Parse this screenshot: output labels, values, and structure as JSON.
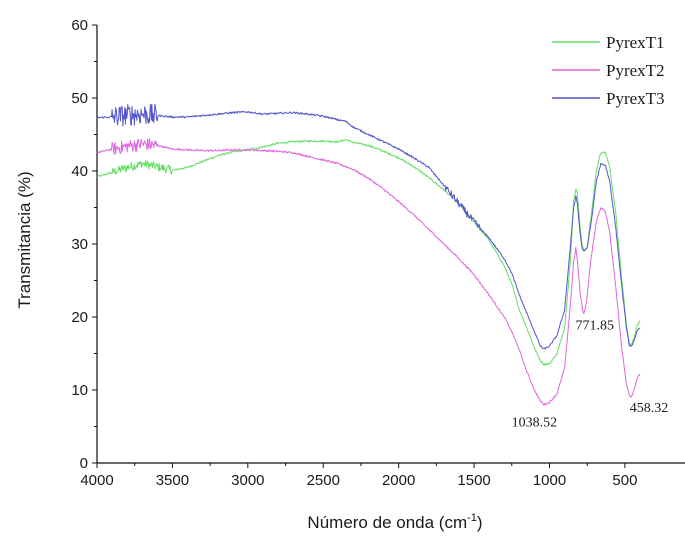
{
  "chart_data": {
    "type": "line",
    "title": "",
    "xlabel": "Número de onda (cm",
    "xlabel_sup": "-1",
    "xlabel_end": ")",
    "ylabel": "Transmitancia (%)",
    "xlim": [
      4000,
      400
    ],
    "ylim": [
      0,
      60
    ],
    "x_ticks": [
      4000,
      3500,
      3000,
      2500,
      2000,
      1500,
      1000,
      500
    ],
    "y_ticks": [
      0,
      10,
      20,
      30,
      40,
      50,
      60
    ],
    "legend_position": "top-right",
    "series": [
      {
        "name": "PyrexT1",
        "color": "#66dd66",
        "noise": [
          [
            3900,
            3500,
            0.6
          ]
        ],
        "points": [
          [
            4000,
            39.2
          ],
          [
            3900,
            39.8
          ],
          [
            3800,
            40.5
          ],
          [
            3700,
            41.0
          ],
          [
            3600,
            40.6
          ],
          [
            3500,
            40.1
          ],
          [
            3400,
            40.5
          ],
          [
            3300,
            41.3
          ],
          [
            3200,
            42.1
          ],
          [
            3100,
            42.6
          ],
          [
            3000,
            42.9
          ],
          [
            2900,
            43.3
          ],
          [
            2800,
            43.8
          ],
          [
            2700,
            44.0
          ],
          [
            2600,
            44.1
          ],
          [
            2500,
            44.1
          ],
          [
            2400,
            44.0
          ],
          [
            2350,
            44.3
          ],
          [
            2300,
            43.9
          ],
          [
            2200,
            43.5
          ],
          [
            2100,
            42.7
          ],
          [
            2000,
            41.8
          ],
          [
            1900,
            40.6
          ],
          [
            1800,
            39.1
          ],
          [
            1700,
            37.4
          ],
          [
            1600,
            35.5
          ],
          [
            1500,
            33.0
          ],
          [
            1400,
            30.5
          ],
          [
            1300,
            27.0
          ],
          [
            1250,
            24.5
          ],
          [
            1200,
            21.0
          ],
          [
            1150,
            18.5
          ],
          [
            1100,
            15.8
          ],
          [
            1060,
            14.0
          ],
          [
            1038,
            13.5
          ],
          [
            1000,
            13.6
          ],
          [
            950,
            15.0
          ],
          [
            900,
            18.5
          ],
          [
            860,
            28.0
          ],
          [
            840,
            36.0
          ],
          [
            825,
            37.5
          ],
          [
            815,
            37.0
          ],
          [
            800,
            33.0
          ],
          [
            785,
            30.0
          ],
          [
            772,
            29.0
          ],
          [
            750,
            29.5
          ],
          [
            720,
            34.5
          ],
          [
            690,
            40.0
          ],
          [
            660,
            42.5
          ],
          [
            630,
            42.5
          ],
          [
            600,
            40.5
          ],
          [
            560,
            34.0
          ],
          [
            520,
            25.0
          ],
          [
            490,
            19.0
          ],
          [
            470,
            16.3
          ],
          [
            458,
            16.2
          ],
          [
            440,
            17.0
          ],
          [
            420,
            18.8
          ],
          [
            400,
            19.5
          ]
        ]
      },
      {
        "name": "PyrexT2",
        "color": "#e066e0",
        "noise": [
          [
            3900,
            3600,
            0.9
          ]
        ],
        "points": [
          [
            4000,
            42.5
          ],
          [
            3900,
            43.0
          ],
          [
            3800,
            43.4
          ],
          [
            3700,
            43.7
          ],
          [
            3600,
            43.5
          ],
          [
            3500,
            43.0
          ],
          [
            3400,
            42.9
          ],
          [
            3300,
            42.8
          ],
          [
            3200,
            42.8
          ],
          [
            3100,
            42.9
          ],
          [
            3000,
            42.9
          ],
          [
            2900,
            42.8
          ],
          [
            2800,
            42.7
          ],
          [
            2700,
            42.5
          ],
          [
            2600,
            42.0
          ],
          [
            2500,
            41.5
          ],
          [
            2400,
            41.0
          ],
          [
            2300,
            40.2
          ],
          [
            2200,
            39.0
          ],
          [
            2100,
            37.5
          ],
          [
            2000,
            35.8
          ],
          [
            1900,
            34.0
          ],
          [
            1800,
            32.0
          ],
          [
            1700,
            30.0
          ],
          [
            1600,
            28.0
          ],
          [
            1500,
            25.8
          ],
          [
            1400,
            23.0
          ],
          [
            1300,
            20.0
          ],
          [
            1250,
            18.0
          ],
          [
            1200,
            15.5
          ],
          [
            1150,
            12.5
          ],
          [
            1100,
            10.0
          ],
          [
            1060,
            8.5
          ],
          [
            1038,
            8.0
          ],
          [
            1000,
            8.3
          ],
          [
            950,
            9.5
          ],
          [
            900,
            13.0
          ],
          [
            860,
            22.0
          ],
          [
            840,
            27.5
          ],
          [
            825,
            29.5
          ],
          [
            812,
            27.0
          ],
          [
            795,
            23.0
          ],
          [
            780,
            21.0
          ],
          [
            772,
            20.5
          ],
          [
            755,
            22.0
          ],
          [
            725,
            28.0
          ],
          [
            690,
            33.0
          ],
          [
            660,
            35.0
          ],
          [
            630,
            34.5
          ],
          [
            600,
            31.5
          ],
          [
            560,
            24.0
          ],
          [
            520,
            15.5
          ],
          [
            490,
            10.8
          ],
          [
            470,
            9.2
          ],
          [
            458,
            9.0
          ],
          [
            440,
            10.0
          ],
          [
            420,
            11.5
          ],
          [
            400,
            12.2
          ]
        ]
      },
      {
        "name": "PyrexT3",
        "color": "#5555cc",
        "noise": [
          [
            3900,
            3600,
            1.5
          ],
          [
            1700,
            1450,
            0.5
          ]
        ],
        "points": [
          [
            4000,
            47.3
          ],
          [
            3900,
            47.4
          ],
          [
            3800,
            47.7
          ],
          [
            3700,
            47.8
          ],
          [
            3600,
            47.6
          ],
          [
            3500,
            47.4
          ],
          [
            3400,
            47.4
          ],
          [
            3300,
            47.6
          ],
          [
            3200,
            47.8
          ],
          [
            3100,
            48.0
          ],
          [
            3000,
            48.1
          ],
          [
            2900,
            47.8
          ],
          [
            2800,
            47.9
          ],
          [
            2700,
            48.0
          ],
          [
            2600,
            47.8
          ],
          [
            2500,
            47.5
          ],
          [
            2400,
            47.0
          ],
          [
            2350,
            46.8
          ],
          [
            2300,
            46.0
          ],
          [
            2200,
            45.0
          ],
          [
            2100,
            44.0
          ],
          [
            2000,
            43.0
          ],
          [
            1900,
            41.8
          ],
          [
            1800,
            40.5
          ],
          [
            1700,
            38.0
          ],
          [
            1600,
            35.5
          ],
          [
            1500,
            33.0
          ],
          [
            1400,
            30.8
          ],
          [
            1300,
            28.0
          ],
          [
            1250,
            26.0
          ],
          [
            1200,
            23.0
          ],
          [
            1150,
            20.5
          ],
          [
            1100,
            18.0
          ],
          [
            1060,
            16.0
          ],
          [
            1038,
            15.6
          ],
          [
            1000,
            16.0
          ],
          [
            950,
            17.5
          ],
          [
            900,
            21.0
          ],
          [
            860,
            30.0
          ],
          [
            840,
            35.0
          ],
          [
            825,
            36.5
          ],
          [
            815,
            35.5
          ],
          [
            800,
            32.0
          ],
          [
            785,
            29.5
          ],
          [
            772,
            29.0
          ],
          [
            750,
            29.5
          ],
          [
            720,
            33.5
          ],
          [
            690,
            38.5
          ],
          [
            660,
            41.0
          ],
          [
            630,
            40.8
          ],
          [
            600,
            38.5
          ],
          [
            560,
            32.0
          ],
          [
            520,
            24.0
          ],
          [
            490,
            18.5
          ],
          [
            470,
            16.0
          ],
          [
            458,
            15.9
          ],
          [
            440,
            16.8
          ],
          [
            420,
            18.0
          ],
          [
            400,
            18.5
          ]
        ]
      }
    ],
    "annotations": [
      {
        "text": "771.85",
        "x": 700,
        "y": 18.3
      },
      {
        "text": "1038.52",
        "x": 1100,
        "y": 5.0
      },
      {
        "text": "458.32",
        "x": 340,
        "y": 7.0
      }
    ]
  }
}
